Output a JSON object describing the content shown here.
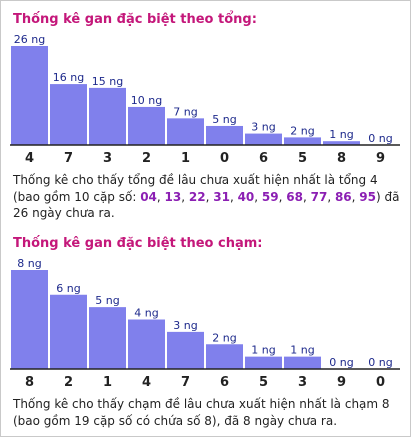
{
  "sections": [
    {
      "heading": "Thống kê gan đặc biệt theo tổng:",
      "desc_pre": "Thống kê cho thấy tổng đề lâu chưa xuất hiện nhất là tổng 4 (bao gồm 10 cặp số: ",
      "desc_numbers": [
        "04",
        "13",
        "22",
        "31",
        "40",
        "59",
        "68",
        "77",
        "86",
        "95"
      ],
      "desc_post": ") đã 26 ngày chưa ra."
    },
    {
      "heading": "Thống kê gan đặc biệt theo chạm:",
      "desc": "Thống kê cho thấy chạm đề lâu chưa xuất hiện nhất là chạm 8 (bao gồm 19 cặp số có chứa số 8), đã 8 ngày chưa ra."
    }
  ],
  "chart_data": [
    {
      "type": "bar",
      "title": "Thống kê gan đặc biệt theo tổng:",
      "categories": [
        "4",
        "7",
        "3",
        "2",
        "1",
        "0",
        "6",
        "5",
        "8",
        "9"
      ],
      "values": [
        26,
        16,
        15,
        10,
        7,
        5,
        3,
        2,
        1,
        0
      ],
      "labels": [
        "26 ng",
        "16 ng",
        "15 ng",
        "10 ng",
        "7 ng",
        "5 ng",
        "3 ng",
        "2 ng",
        "1 ng",
        "0 ng"
      ],
      "ylim": [
        0,
        26
      ],
      "grid": false,
      "bar_color": "#8080ec"
    },
    {
      "type": "bar",
      "title": "Thống kê gan đặc biệt theo chạm:",
      "categories": [
        "8",
        "2",
        "1",
        "4",
        "7",
        "6",
        "5",
        "3",
        "9",
        "0"
      ],
      "values": [
        8,
        6,
        5,
        4,
        3,
        2,
        1,
        1,
        0,
        0
      ],
      "labels": [
        "8 ng",
        "6 ng",
        "5 ng",
        "4 ng",
        "3 ng",
        "2 ng",
        "1 ng",
        "1 ng",
        "0 ng",
        "0 ng"
      ],
      "ylim": [
        0,
        8
      ],
      "grid": false,
      "bar_color": "#8080ec"
    }
  ]
}
